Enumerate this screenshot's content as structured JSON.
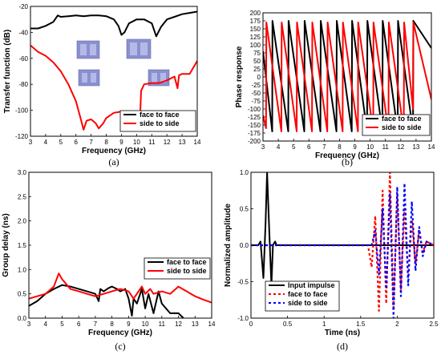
{
  "chart_data": [
    {
      "type": "line",
      "caption": "(a)",
      "xlabel": "Frequency (GHz)",
      "ylabel": "Transfer function (dB)",
      "xlim": [
        3,
        14
      ],
      "ylim": [
        -120,
        -20
      ],
      "xticks": [
        3,
        4,
        5,
        6,
        7,
        8,
        9,
        10,
        11,
        12,
        13,
        14
      ],
      "yticks": [
        -120,
        -100,
        -80,
        -60,
        -40,
        -20
      ],
      "legend_position": "bottom-right",
      "inset": "4 small photographs of antenna pairs",
      "series": [
        {
          "name": "face to face",
          "color": "#000000",
          "x": [
            3,
            3.5,
            4,
            4.5,
            4.8,
            5,
            5.5,
            6,
            6.5,
            7,
            7.5,
            8,
            8.5,
            8.8,
            9,
            9.2,
            9.5,
            10,
            10.5,
            11,
            11.3,
            11.6,
            12,
            12.5,
            13,
            13.5,
            14
          ],
          "y": [
            -37,
            -37,
            -35,
            -32,
            -27,
            -28,
            -27.5,
            -27,
            -27.5,
            -27,
            -27,
            -27.5,
            -30,
            -35,
            -42,
            -40,
            -33,
            -30,
            -30,
            -33,
            -43,
            -36,
            -30,
            -28,
            -26,
            -25,
            -24
          ]
        },
        {
          "name": "side to side",
          "color": "#ff0000",
          "x": [
            3,
            3.5,
            4,
            4.5,
            5,
            5.5,
            6,
            6.3,
            6.5,
            6.7,
            7,
            7.3,
            7.5,
            7.8,
            8,
            8.5,
            9,
            9.5,
            10,
            10.2,
            10.3,
            10.5,
            11,
            11.5,
            12,
            12.5,
            12.7,
            12.8,
            13,
            13.5,
            14
          ],
          "y": [
            -50,
            -55,
            -58,
            -63,
            -70,
            -80,
            -93,
            -106,
            -115,
            -108,
            -107,
            -110,
            -114,
            -110,
            -106,
            -102,
            -101,
            -102,
            -106,
            -115,
            -85,
            -80,
            -79,
            -79,
            -77,
            -74,
            -83,
            -73,
            -72,
            -72,
            -62
          ]
        }
      ]
    },
    {
      "type": "line",
      "caption": "(b)",
      "xlabel": "Frequency (GHz)",
      "ylabel": "Phase response",
      "xlim": [
        3,
        14
      ],
      "ylim": [
        -200,
        200
      ],
      "xticks": [
        3,
        4,
        5,
        6,
        7,
        8,
        9,
        10,
        11,
        12,
        13,
        14
      ],
      "yticks": [
        -200,
        -175,
        -150,
        -125,
        -100,
        -75,
        -50,
        -25,
        0,
        25,
        50,
        75,
        100,
        125,
        150,
        175,
        200
      ],
      "legend_position": "bottom-right",
      "series": [
        {
          "name": "face to face",
          "color": "#000000",
          "x": [
            3,
            3.6,
            3.62,
            4.65,
            4.67,
            5.7,
            5.72,
            6.75,
            6.77,
            7.8,
            7.82,
            8.8,
            8.82,
            9.8,
            9.82,
            10.8,
            10.82,
            11.8,
            11.82,
            12.8,
            12.82,
            14
          ],
          "y": [
            80,
            -170,
            175,
            -170,
            175,
            -170,
            175,
            -170,
            175,
            -170,
            175,
            -170,
            175,
            -170,
            175,
            -170,
            175,
            -170,
            175,
            -170,
            175,
            90
          ]
        },
        {
          "name": "side to side",
          "color": "#ff0000",
          "x": [
            3,
            3.2,
            3.22,
            4.2,
            4.22,
            5.2,
            5.22,
            6.2,
            6.22,
            7.2,
            7.22,
            8.2,
            8.22,
            9.2,
            9.22,
            10.2,
            10.22,
            11.2,
            11.22,
            12.2,
            12.22,
            12.8,
            12.82,
            14
          ],
          "y": [
            -120,
            -160,
            170,
            -170,
            170,
            -170,
            170,
            -170,
            170,
            -170,
            170,
            -170,
            170,
            -170,
            170,
            -170,
            170,
            -170,
            170,
            -170,
            170,
            -100,
            170,
            -70
          ]
        }
      ]
    },
    {
      "type": "line",
      "caption": "(c)",
      "xlabel": "Frequency (GHz)",
      "ylabel": "Group delay (ns)",
      "xlim": [
        3,
        14
      ],
      "ylim": [
        0,
        3
      ],
      "xticks": [
        3,
        4,
        5,
        6,
        7,
        8,
        9,
        10,
        11,
        12,
        13,
        14
      ],
      "yticks": [
        0,
        0.5,
        1.0,
        1.5,
        2.0,
        2.5,
        3.0
      ],
      "legend_position": "right",
      "series": [
        {
          "name": "face to face",
          "color": "#000000",
          "x": [
            3,
            3.5,
            4,
            4.5,
            5,
            5.5,
            6,
            6.5,
            7,
            7.2,
            7.3,
            7.5,
            7.8,
            8,
            8.3,
            8.5,
            8.8,
            9,
            9.2,
            9.3,
            9.5,
            9.8,
            10,
            10.2,
            10.5,
            10.8,
            11,
            11.5,
            12,
            12.3
          ],
          "y": [
            0.25,
            0.35,
            0.5,
            0.6,
            0.68,
            0.65,
            0.6,
            0.55,
            0.5,
            0.35,
            0.6,
            0.55,
            0.62,
            0.65,
            0.6,
            0.55,
            0.6,
            0.4,
            0.05,
            0.4,
            0.3,
            0.6,
            0.2,
            0.5,
            0.1,
            0.55,
            0.3,
            0.1,
            0.1,
            0.0
          ]
        },
        {
          "name": "side to side",
          "color": "#ff0000",
          "x": [
            3,
            3.5,
            4,
            4.5,
            4.8,
            5,
            5.5,
            6,
            6.5,
            7,
            7.5,
            8,
            8.5,
            9,
            9.3,
            9.5,
            9.8,
            10,
            10.3,
            10.5,
            11,
            11.5,
            12,
            12.5,
            13,
            13.5,
            14
          ],
          "y": [
            0.4,
            0.45,
            0.5,
            0.65,
            0.92,
            0.8,
            0.6,
            0.55,
            0.5,
            0.45,
            0.5,
            0.55,
            0.6,
            0.55,
            0.4,
            0.5,
            0.65,
            0.5,
            0.6,
            0.5,
            0.55,
            0.5,
            0.65,
            0.55,
            0.45,
            0.38,
            0.32
          ]
        }
      ]
    },
    {
      "type": "line",
      "caption": "(d)",
      "xlabel": "Time (ns)",
      "ylabel": "Normalized amplitude",
      "xlim": [
        0,
        2.5
      ],
      "ylim": [
        -1,
        1
      ],
      "xticks": [
        0,
        0.5,
        1.0,
        1.5,
        2.0,
        2.5
      ],
      "yticks": [
        -1.0,
        -0.5,
        0.0,
        0.5,
        1.0
      ],
      "legend_position": "bottom-left",
      "series": [
        {
          "name": "Input impulse",
          "color": "#000000",
          "style": "solid",
          "x": [
            0,
            0.1,
            0.13,
            0.17,
            0.2,
            0.22,
            0.25,
            0.28,
            0.3,
            0.33,
            0.35,
            0.4,
            2.5
          ],
          "y": [
            0,
            0,
            0.05,
            -0.45,
            0.3,
            1.0,
            0.2,
            -0.55,
            0.0,
            0.05,
            0,
            0,
            0
          ]
        },
        {
          "name": "face to face",
          "color": "#ff0000",
          "style": "dashed",
          "x": [
            0,
            1.6,
            1.65,
            1.7,
            1.75,
            1.8,
            1.85,
            1.9,
            1.95,
            2.0,
            2.05,
            2.1,
            2.15,
            2.2,
            2.25,
            2.3,
            2.35,
            2.4,
            2.5
          ],
          "y": [
            0,
            0,
            -0.3,
            0.4,
            -0.9,
            0.75,
            -0.8,
            1.0,
            -0.85,
            0.7,
            -0.6,
            0.5,
            -0.45,
            0.35,
            -0.25,
            0.2,
            -0.1,
            0.05,
            0
          ]
        },
        {
          "name": "side to side",
          "color": "#0000ff",
          "style": "dashed",
          "x": [
            0,
            1.65,
            1.7,
            1.75,
            1.8,
            1.85,
            1.9,
            1.95,
            2.0,
            2.05,
            2.1,
            2.15,
            2.2,
            2.25,
            2.3,
            2.35,
            2.4,
            2.5
          ],
          "y": [
            0,
            0,
            0.2,
            -0.4,
            0.5,
            -0.6,
            0.7,
            -1.0,
            0.8,
            -0.7,
            0.85,
            -0.55,
            0.6,
            -0.35,
            0.25,
            -0.15,
            0.05,
            0
          ]
        }
      ]
    }
  ]
}
